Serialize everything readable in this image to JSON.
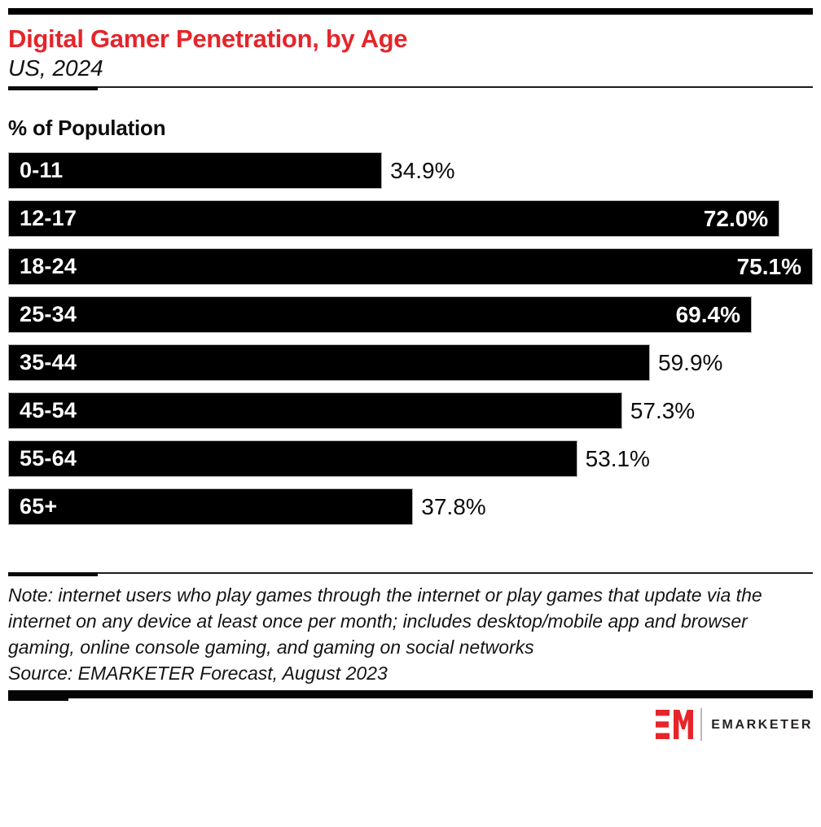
{
  "header": {
    "title": "Digital Gamer Penetration, by Age",
    "subtitle": "US, 2024",
    "title_color": "#e5252a"
  },
  "chart": {
    "axis_label": "% of Population"
  },
  "chart_data": {
    "type": "bar",
    "orientation": "horizontal",
    "title": "Digital Gamer Penetration, by Age",
    "subtitle": "US, 2024",
    "xlabel": "% of Population",
    "categories": [
      "0-11",
      "12-17",
      "18-24",
      "25-34",
      "35-44",
      "45-54",
      "55-64",
      "65+"
    ],
    "values": [
      34.9,
      72.0,
      75.1,
      69.4,
      59.9,
      57.3,
      53.1,
      37.8
    ],
    "value_labels": [
      "34.9%",
      "72.0%",
      "75.1%",
      "69.4%",
      "59.9%",
      "57.3%",
      "53.1%",
      "37.8%"
    ],
    "value_suffix": "%",
    "axis_max": 75.1,
    "xlim": [
      0,
      75.1
    ],
    "grid": false,
    "legend": false,
    "bar_color": "#000000",
    "inside_label_threshold_pct": 90
  },
  "note": {
    "lines": [
      "Note: internet users who play games through the internet or play games that update via the",
      "internet on any device at least once per month; includes desktop/mobile app and browser",
      "gaming, online console gaming, and gaming on social networks"
    ],
    "source": "Source: EMARKETER Forecast, August 2023"
  },
  "footer": {
    "brand": "EMARKETER",
    "monogram": "EM",
    "brand_red": "#e5252a",
    "brand_dark": "#262223"
  }
}
